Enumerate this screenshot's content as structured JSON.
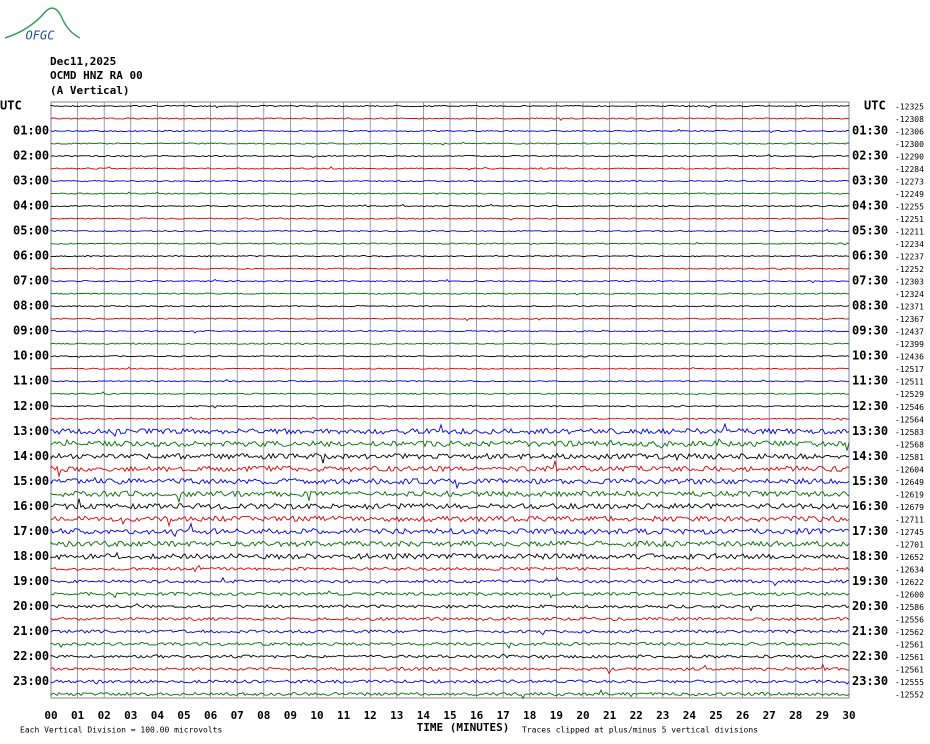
{
  "logo": "OFGC",
  "header": {
    "date": "Dec11,2025",
    "station": "OCMD HNZ RA 00",
    "component": "(A Vertical)"
  },
  "left_labels": [
    "UTC",
    "01:00",
    "02:00",
    "03:00",
    "04:00",
    "05:00",
    "06:00",
    "07:00",
    "08:00",
    "09:00",
    "10:00",
    "11:00",
    "12:00",
    "13:00",
    "14:00",
    "15:00",
    "16:00",
    "17:00",
    "18:00",
    "19:00",
    "20:00",
    "21:00",
    "22:00",
    "23:00"
  ],
  "right_labels": [
    "UTC",
    "01:30",
    "02:30",
    "03:30",
    "04:30",
    "05:30",
    "06:30",
    "07:30",
    "08:30",
    "09:30",
    "10:30",
    "11:30",
    "12:30",
    "13:30",
    "14:30",
    "15:30",
    "16:30",
    "17:30",
    "18:30",
    "19:30",
    "20:30",
    "21:30",
    "22:30",
    "23:30"
  ],
  "trace_offsets": [
    -12325,
    -12308,
    -12306,
    -12300,
    -12290,
    -12284,
    -12273,
    -12249,
    -12255,
    -12251,
    -12211,
    -12234,
    -12237,
    -12252,
    -12303,
    -12324,
    -12371,
    -12367,
    -12437,
    -12399,
    -12436,
    -12517,
    -12511,
    -12529,
    -12546,
    -12564,
    -12583,
    -12568,
    -12581,
    -12604,
    -12649,
    -12619,
    -12679,
    -12711,
    -12745,
    -12701,
    -12652,
    -12634,
    -12622,
    -12600,
    -12586,
    -12556,
    -12562,
    -12561,
    -12561,
    -12561,
    -12555,
    -12552
  ],
  "x_ticks": [
    "00",
    "01",
    "02",
    "03",
    "04",
    "05",
    "06",
    "07",
    "08",
    "09",
    "10",
    "11",
    "12",
    "13",
    "14",
    "15",
    "16",
    "17",
    "18",
    "19",
    "20",
    "21",
    "22",
    "23",
    "24",
    "25",
    "26",
    "27",
    "28",
    "29",
    "30"
  ],
  "footer": {
    "scale": "Each Vertical Division =  100.00 microvolts",
    "x_axis": "TIME (MINUTES)",
    "clip": "Traces clipped at plus/minus 5 vertical divisions"
  },
  "trace_colors": [
    "#000000",
    "#e00000",
    "#0000e0",
    "#007000"
  ]
}
